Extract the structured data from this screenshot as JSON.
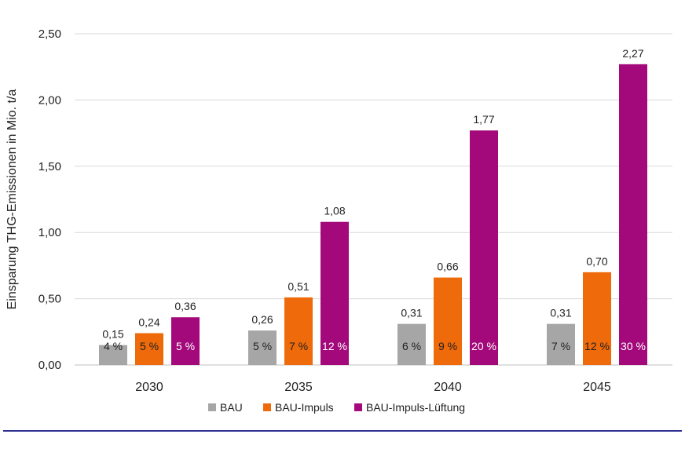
{
  "chart_data": {
    "type": "bar",
    "title": "",
    "ylabel": "Einsparung THG-Emissionen in Mio. t/a",
    "xlabel": "",
    "ylim": [
      0,
      2.5
    ],
    "yticks": [
      "0,00",
      "0,50",
      "1,00",
      "1,50",
      "2,00",
      "2,50"
    ],
    "ytick_values": [
      0,
      0.5,
      1.0,
      1.5,
      2.0,
      2.5
    ],
    "grid": "horizontal",
    "legend_position": "bottom",
    "categories": [
      "2030",
      "2035",
      "2040",
      "2045"
    ],
    "series": [
      {
        "name": "BAU",
        "color": "#a6a6a6",
        "values": [
          0.15,
          0.26,
          0.31,
          0.31
        ],
        "value_labels": [
          "0,15",
          "0,26",
          "0,31",
          "0,31"
        ],
        "percent_labels": [
          "4 %",
          "5 %",
          "6 %",
          "7 %"
        ],
        "percent_color": "#222222"
      },
      {
        "name": "BAU-Impuls",
        "color": "#ee6a0a",
        "values": [
          0.24,
          0.51,
          0.66,
          0.7
        ],
        "value_labels": [
          "0,24",
          "0,51",
          "0,66",
          "0,70"
        ],
        "percent_labels": [
          "5 %",
          "7 %",
          "9 %",
          "12 %"
        ],
        "percent_color": "#222222"
      },
      {
        "name": "BAU-Impuls-Lüftung",
        "color": "#a3097a",
        "values": [
          0.36,
          1.08,
          1.77,
          2.27
        ],
        "value_labels": [
          "0,36",
          "1,08",
          "1,77",
          "2,27"
        ],
        "percent_labels": [
          "5 %",
          "12 %",
          "20 %",
          "30 %"
        ],
        "percent_color": "#ffffff"
      }
    ]
  },
  "footer_line_color": "#2e3192"
}
